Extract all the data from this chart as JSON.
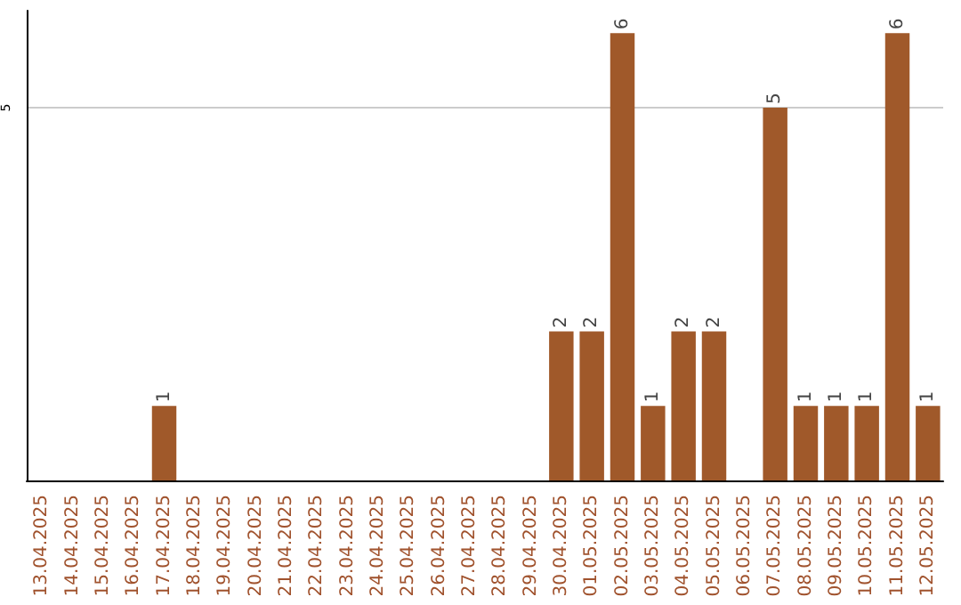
{
  "chart_data": {
    "type": "bar",
    "categories": [
      "13.04.2025",
      "14.04.2025",
      "15.04.2025",
      "16.04.2025",
      "17.04.2025",
      "18.04.2025",
      "19.04.2025",
      "20.04.2025",
      "21.04.2025",
      "22.04.2025",
      "23.04.2025",
      "24.04.2025",
      "25.04.2025",
      "26.04.2025",
      "27.04.2025",
      "28.04.2025",
      "29.04.2025",
      "30.04.2025",
      "01.05.2025",
      "02.05.2025",
      "03.05.2025",
      "04.05.2025",
      "05.05.2025",
      "06.05.2025",
      "07.05.2025",
      "08.05.2025",
      "09.05.2025",
      "10.05.2025",
      "11.05.2025",
      "12.05.2025"
    ],
    "values": [
      0,
      0,
      0,
      0,
      1,
      0,
      0,
      0,
      0,
      0,
      0,
      0,
      0,
      0,
      0,
      0,
      0,
      2,
      2,
      6,
      1,
      2,
      2,
      0,
      5,
      1,
      1,
      1,
      6,
      1
    ],
    "value_labels": [
      null,
      null,
      null,
      null,
      "1",
      null,
      null,
      null,
      null,
      null,
      null,
      null,
      null,
      null,
      null,
      null,
      null,
      "2",
      "2",
      "6",
      "1",
      "2",
      "2",
      null,
      "5",
      "1",
      "1",
      "1",
      "6",
      "1"
    ],
    "color": "#a0592a",
    "ylim": [
      0,
      6.3
    ],
    "yticks": [
      5
    ],
    "grid": "y"
  }
}
